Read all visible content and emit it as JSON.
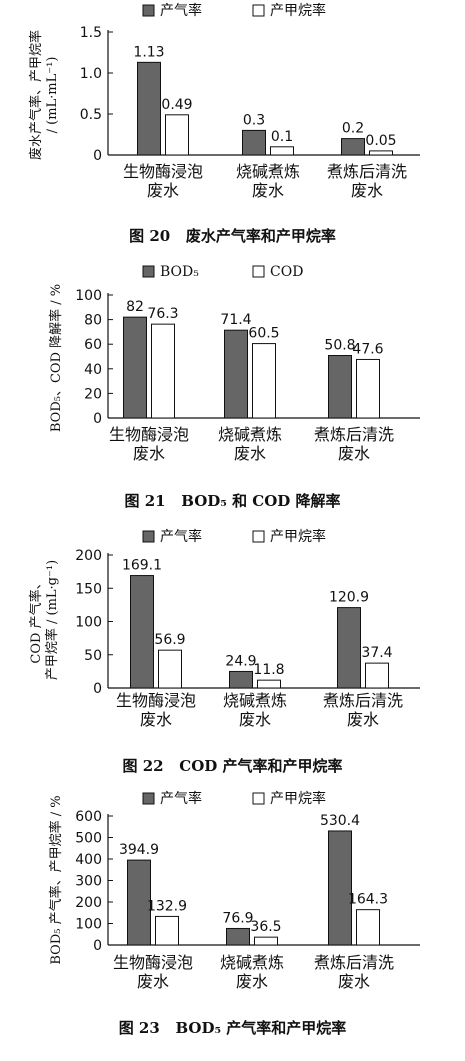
{
  "chart_data": [
    {
      "type": "bar",
      "categories": [
        "生物酶浸泡|废水",
        "烧碱煮炼|废水",
        "煮炼后清洗|废水"
      ],
      "series": [
        {
          "name": "产气率",
          "values": [
            1.13,
            0.3,
            0.2
          ],
          "labels": [
            "1.13",
            "0.3",
            "0.2"
          ],
          "color": "#666666"
        },
        {
          "name": "产甲烷率",
          "values": [
            0.49,
            0.1,
            0.05
          ],
          "labels": [
            "0.49",
            "0.1",
            "0.05"
          ],
          "color": "#ffffff"
        }
      ],
      "ylim": [
        0,
        1.5
      ],
      "yticks": [
        "0",
        "0.5",
        "1.0",
        "1.5"
      ],
      "ylabel_lines": [
        "废水产气率、产甲烷率",
        "/ (mL·mL⁻¹)"
      ],
      "caption_num": "图 20",
      "caption_text": "废水产气率和产甲烷率"
    },
    {
      "type": "bar",
      "categories": [
        "生物酶浸泡|废水",
        "烧碱煮炼|废水",
        "煮炼后清洗|废水"
      ],
      "series": [
        {
          "name": "BOD₅",
          "values": [
            82,
            71.4,
            50.8
          ],
          "labels": [
            "82",
            "71.4",
            "50.8"
          ],
          "color": "#666666"
        },
        {
          "name": "COD",
          "values": [
            76.3,
            60.5,
            47.6
          ],
          "labels": [
            "76.3",
            "60.5",
            "47.6"
          ],
          "color": "#ffffff"
        }
      ],
      "ylim": [
        0,
        100
      ],
      "yticks": [
        "0",
        "20",
        "40",
        "60",
        "80",
        "100"
      ],
      "ylabel_lines": [
        "BOD₅、COD 降解率 / %"
      ],
      "caption_num": "图 21",
      "caption_text": "BOD₅ 和 COD 降解率"
    },
    {
      "type": "bar",
      "categories": [
        "生物酶浸泡|废水",
        "烧碱煮炼|废水",
        "煮炼后清洗|废水"
      ],
      "series": [
        {
          "name": "产气率",
          "values": [
            169.1,
            24.9,
            120.9
          ],
          "labels": [
            "169.1",
            "24.9",
            "120.9"
          ],
          "color": "#666666"
        },
        {
          "name": "产甲烷率",
          "values": [
            56.9,
            11.8,
            37.4
          ],
          "labels": [
            "56.9",
            "11.8",
            "37.4"
          ],
          "color": "#ffffff"
        }
      ],
      "ylim": [
        0,
        200
      ],
      "yticks": [
        "0",
        "50",
        "100",
        "150",
        "200"
      ],
      "ylabel_lines": [
        "COD 产气率、",
        "产甲烷率 / (mL·g⁻¹)"
      ],
      "caption_num": "图 22",
      "caption_text": "COD 产气率和产甲烷率"
    },
    {
      "type": "bar",
      "categories": [
        "生物酶浸泡|废水",
        "烧碱煮炼|废水",
        "煮炼后清洗|废水"
      ],
      "series": [
        {
          "name": "产气率",
          "values": [
            394.9,
            76.9,
            530.4
          ],
          "labels": [
            "394.9",
            "76.9",
            "530.4"
          ],
          "color": "#666666"
        },
        {
          "name": "产甲烷率",
          "values": [
            132.9,
            36.5,
            164.3
          ],
          "labels": [
            "132.9",
            "36.5",
            "164.3"
          ],
          "color": "#ffffff"
        }
      ],
      "ylim": [
        0,
        600
      ],
      "yticks": [
        "0",
        "100",
        "200",
        "300",
        "400",
        "500",
        "600"
      ],
      "ylabel_lines": [
        "BOD₅ 产气率、产甲烷率 / %"
      ],
      "caption_num": "图 23",
      "caption_text": "BOD₅ 产气率和产甲烷率"
    }
  ]
}
